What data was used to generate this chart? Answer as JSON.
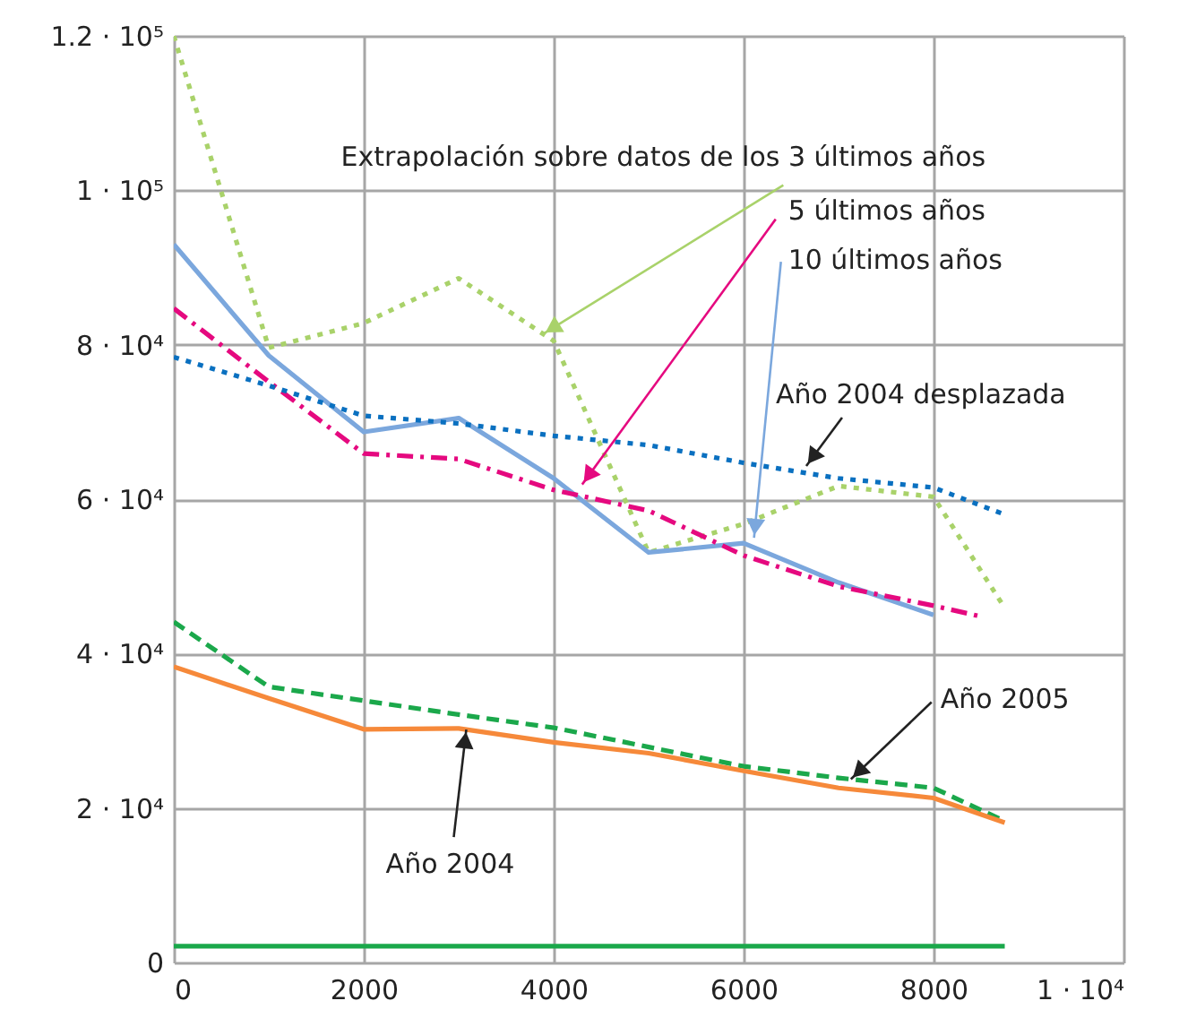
{
  "chart_data": {
    "type": "line",
    "series": [
      {
        "color": "#a9d26a",
        "line_style": "dotted",
        "x": [
          0,
          1000,
          2000,
          3000,
          4000,
          5000,
          6000,
          7000,
          8000,
          8750
        ],
        "values": [
          120000,
          79600,
          82800,
          88600,
          80500,
          53100,
          56800,
          61700,
          60300,
          45900
        ]
      },
      {
        "color": "#7ba7dd",
        "line_style": "solid",
        "x": [
          0,
          1000,
          2000,
          3000,
          4000,
          5000,
          6000,
          7000,
          8000
        ],
        "values": [
          93000,
          78600,
          68700,
          70500,
          62700,
          53100,
          54300,
          49200,
          45000
        ]
      },
      {
        "color": "#e5097f",
        "line_style": "dashdot",
        "x": [
          0,
          1000,
          2000,
          3000,
          4000,
          5000,
          6000,
          7000,
          8000,
          8500
        ],
        "values": [
          84700,
          75200,
          65900,
          65200,
          61200,
          58500,
          52700,
          48700,
          46200,
          44800
        ]
      },
      {
        "color": "#0a70c0",
        "line_style": "dotted",
        "x": [
          0,
          1000,
          2000,
          3000,
          4000,
          5000,
          6000,
          7000,
          8000,
          8750
        ],
        "values": [
          78400,
          74700,
          70800,
          69800,
          68200,
          67000,
          64700,
          62700,
          61500,
          58000
        ]
      },
      {
        "color": "#1ba84b",
        "line_style": "dashed",
        "x": [
          0,
          1000,
          2000,
          3000,
          4000,
          5000,
          6000,
          7000,
          8000,
          8750
        ],
        "values": [
          44100,
          35700,
          33900,
          32100,
          30400,
          27900,
          25400,
          23900,
          22600,
          18300
        ]
      },
      {
        "color": "#f6893a",
        "line_style": "solid",
        "x": [
          0,
          1000,
          2000,
          3000,
          4000,
          5000,
          6000,
          7000,
          8000,
          8750
        ],
        "values": [
          38300,
          34200,
          30200,
          30300,
          28500,
          27100,
          24800,
          22600,
          21300,
          18100
        ]
      },
      {
        "color": "#1ba84b",
        "line_style": "solid",
        "x": [
          0,
          8750
        ],
        "values": [
          2100,
          2100
        ]
      }
    ],
    "xlim": [
      0,
      10000
    ],
    "xticks": [
      0,
      2000,
      4000,
      6000,
      8000,
      {
        "value": 10000,
        "label": "1 · 10⁴"
      }
    ],
    "ylim": [
      0,
      120000
    ],
    "yticks": [
      0,
      {
        "value": 20000,
        "label": "2 · 10⁴"
      },
      {
        "value": 40000,
        "label": "4 · 10⁴"
      },
      {
        "value": 60000,
        "label": "6 · 10⁴"
      },
      {
        "value": 80000,
        "label": "8 · 10⁴"
      },
      {
        "value": 100000,
        "label": "1 · 10⁵"
      },
      {
        "value": 120000,
        "label": "1.2 · 10⁵"
      }
    ],
    "grid": true,
    "annotations": [
      {
        "text": "Extrapolación sobre datos de los 3 últimos años",
        "x": 3890,
        "y": 81400
      },
      {
        "text": "5 últimos años",
        "x": 4300,
        "y": 61900
      },
      {
        "text": "10 últimos años",
        "x": 6110,
        "y": 55000
      },
      {
        "text": "Año 2004 desplazada",
        "x": 6660,
        "y": 64300
      },
      {
        "text": "Año 2005",
        "x": 7130,
        "y": 23730
      },
      {
        "text": "Año 2004",
        "x": 3080,
        "y": 30160
      }
    ]
  }
}
